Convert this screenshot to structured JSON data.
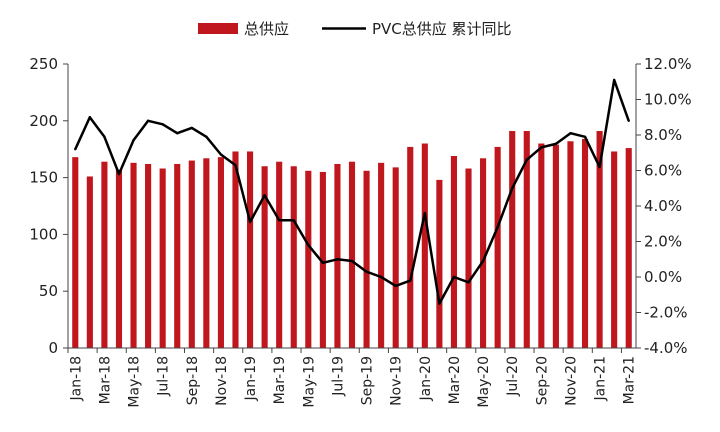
{
  "chart_data": {
    "type": "bar+line",
    "colors": {
      "bar": "#C0171E",
      "line": "#000000"
    },
    "legend": {
      "placement": "top",
      "bar_label": "总供应",
      "line_label": "PVC总供应 累计同比"
    },
    "left_axis": {
      "min": 0,
      "max": 250,
      "ticks": [
        "0",
        "50",
        "100",
        "150",
        "200",
        "250"
      ]
    },
    "right_axis": {
      "min": -4.0,
      "max": 12.0,
      "ticks": [
        "-4.0%",
        "-2.0%",
        "0.0%",
        "2.0%",
        "4.0%",
        "6.0%",
        "8.0%",
        "10.0%",
        "12.0%"
      ]
    },
    "x_ticks": [
      "Jan-18",
      "Mar-18",
      "May-18",
      "Jul-18",
      "Sep-18",
      "Nov-18",
      "Jan-19",
      "Mar-19",
      "May-19",
      "Jul-19",
      "Sep-19",
      "Nov-19",
      "Jan-20",
      "Mar-20",
      "May-20",
      "Jul-20",
      "Sep-20",
      "Nov-20",
      "Jan-21",
      "Mar-21"
    ],
    "categories": [
      "Jan-18",
      "Feb-18",
      "Mar-18",
      "Apr-18",
      "May-18",
      "Jun-18",
      "Jul-18",
      "Aug-18",
      "Sep-18",
      "Oct-18",
      "Nov-18",
      "Dec-18",
      "Jan-19",
      "Feb-19",
      "Mar-19",
      "Apr-19",
      "May-19",
      "Jun-19",
      "Jul-19",
      "Aug-19",
      "Sep-19",
      "Oct-19",
      "Nov-19",
      "Dec-19",
      "Jan-20",
      "Feb-20",
      "Mar-20",
      "Apr-20",
      "May-20",
      "Jun-20",
      "Jul-20",
      "Aug-20",
      "Sep-20",
      "Oct-20",
      "Nov-20",
      "Dec-20",
      "Jan-21",
      "Feb-21",
      "Mar-21"
    ],
    "series": [
      {
        "name": "总供应",
        "type": "bar",
        "axis": "left",
        "values": [
          168,
          151,
          164,
          157,
          163,
          162,
          158,
          162,
          165,
          167,
          168,
          173,
          173,
          160,
          164,
          160,
          156,
          155,
          162,
          164,
          156,
          163,
          159,
          177,
          180,
          148,
          169,
          158,
          167,
          177,
          191,
          191,
          180,
          179,
          182,
          184,
          191,
          173,
          176
        ]
      },
      {
        "name": "PVC总供应 累计同比",
        "type": "line",
        "axis": "right",
        "unit": "%",
        "values": [
          7.2,
          9.0,
          7.9,
          5.8,
          7.7,
          8.8,
          8.6,
          8.1,
          8.4,
          7.9,
          6.9,
          6.3,
          3.1,
          4.6,
          3.2,
          3.2,
          1.8,
          0.8,
          1.0,
          0.9,
          0.3,
          0.0,
          -0.5,
          -0.2,
          3.6,
          -1.5,
          0.0,
          -0.3,
          0.9,
          2.8,
          5.0,
          6.6,
          7.3,
          7.5,
          8.1,
          7.9,
          6.2,
          11.1,
          8.8
        ]
      }
    ]
  }
}
